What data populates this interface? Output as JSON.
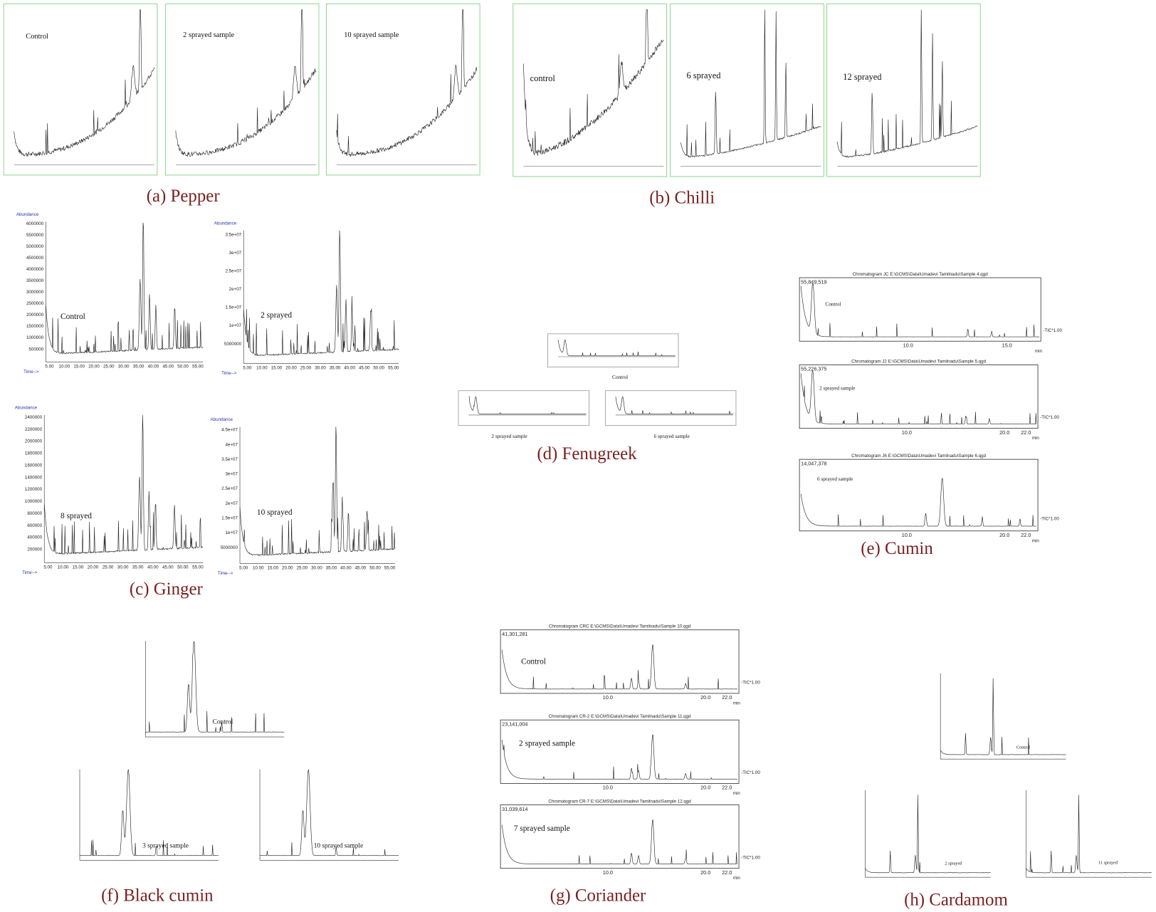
{
  "panels": [
    {
      "caption": "(a) Pepper",
      "plots": [
        {
          "label": "Control"
        },
        {
          "label": "2 sprayed sample"
        },
        {
          "label": "10 sprayed sample"
        }
      ]
    },
    {
      "caption": "(b) Chilli",
      "plots": [
        {
          "label": "control"
        },
        {
          "label": "6 sprayed"
        },
        {
          "label": "12 sprayed"
        }
      ]
    },
    {
      "caption": "(c) Ginger",
      "axis_y": "Abundance",
      "axis_x": "Time-->",
      "xticks": [
        "5.00",
        "10.00",
        "15.00",
        "20.00",
        "25.00",
        "30.00",
        "35.00",
        "40.00",
        "45.00",
        "50.00",
        "55.00"
      ],
      "plots": [
        {
          "label": "Control",
          "yticks": [
            "500000",
            "1000000",
            "1500000",
            "2000000",
            "2500000",
            "3000000",
            "3500000",
            "4000000",
            "4500000",
            "5000000",
            "5500000",
            "6000000"
          ]
        },
        {
          "label": "2 sprayed",
          "yticks": [
            "5000000",
            "1e+07",
            "1.5e+07",
            "2e+07",
            "2.5e+07",
            "3e+07",
            "3.5e+07"
          ]
        },
        {
          "label": "8 sprayed",
          "yticks": [
            "200000",
            "400000",
            "600000",
            "800000",
            "1000000",
            "1200000",
            "1400000",
            "1600000",
            "1800000",
            "2000000",
            "2200000",
            "2400000"
          ]
        },
        {
          "label": "10 sprayed",
          "yticks": [
            "5000000",
            "1e+07",
            "1.5e+07",
            "2e+07",
            "2.5e+07",
            "3e+07",
            "3.5e+07",
            "4e+07",
            "4.5e+07"
          ]
        }
      ]
    },
    {
      "caption": "(d) Fenugreek",
      "plots": [
        {
          "label": "Control"
        },
        {
          "label": "2 sprayed sample"
        },
        {
          "label": "6 sprayed sample"
        }
      ]
    },
    {
      "caption": "(e) Cumin",
      "tic": "-TIC*1.00",
      "unit": "min",
      "plots": [
        {
          "label": "Control",
          "header": "Chromatogram JC E:\\GCMS\\Data\\Umadevi Tamilnadu\\Sample 4.qgd",
          "max": "55,849,519",
          "xticks": [
            "10.0",
            "15.0"
          ]
        },
        {
          "label": "2 sprayed sample",
          "header": "Chromatogram J2 E:\\GCMS\\Data\\Umadevi Tamilnadu\\Sample 5.qgd",
          "max": "55,226,375",
          "xticks": [
            "10.0",
            "20.0",
            "22.0"
          ]
        },
        {
          "label": "6 sprayed sample",
          "header": "Chromatogram J6 E:\\GCMS\\Data\\Umadevi Tamilnadu\\Sample 6.qgd",
          "max": "14,047,378",
          "xticks": [
            "10.0",
            "20.0",
            "22.0"
          ]
        }
      ]
    },
    {
      "caption": "(f) Black cumin",
      "plots": [
        {
          "label": "Control"
        },
        {
          "label": "3 sprayed sample"
        },
        {
          "label": "10 sprayed sample"
        }
      ]
    },
    {
      "caption": "(g) Coriander",
      "tic": "-TIC*1.00",
      "unit": "min",
      "plots": [
        {
          "label": "Control",
          "header": "Chromatogram CRC E:\\GCMS\\Data\\Umadevi Tamilnadu\\Sample 10.qgd",
          "max": "41,301,281",
          "xticks": [
            "10.0",
            "20.0",
            "22.0"
          ]
        },
        {
          "label": "2 sprayed sample",
          "header": "Chromatogram CR-2 E:\\GCMS\\Data\\Umadevi Tamilnadu\\Sample 11.qgd",
          "max": "23,141,004",
          "xticks": [
            "10.0",
            "20.0",
            "22.0"
          ]
        },
        {
          "label": "7 sprayed sample",
          "header": "Chromatogram CR-7 E:\\GCMS\\Data\\Umadevi Tamilnadu\\Sample 12.qgd",
          "max": "31,039,614",
          "xticks": [
            "10.0",
            "20.0",
            "22.0"
          ]
        }
      ]
    },
    {
      "caption": "(h) Cardamom",
      "plots": [
        {
          "label": "Control"
        },
        {
          "label": "2 sprayed"
        },
        {
          "label": "11 sprayed"
        }
      ]
    }
  ]
}
